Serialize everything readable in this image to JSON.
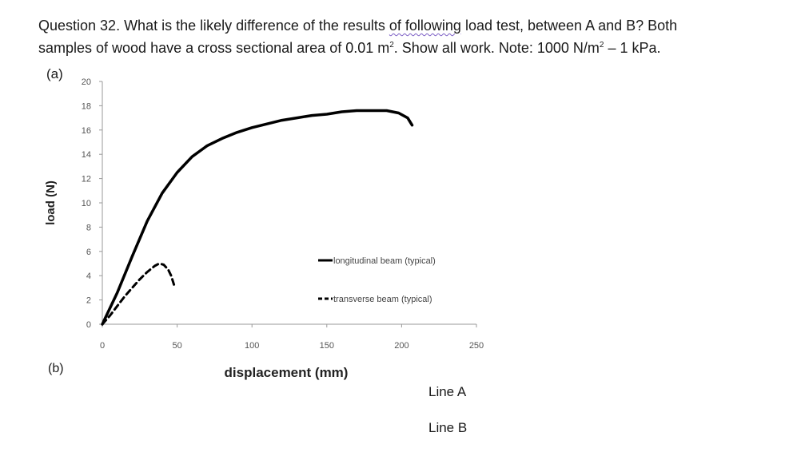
{
  "question": {
    "line1_before": "Question 32. What is the likely difference of the results ",
    "line1_wavy": "of following",
    "line1_after": " load test, between A and B? Both",
    "line2_a": "samples of wood have a cross sectional area of 0.01 m",
    "sup1": "2",
    "line2_b": ". Show all work. Note: 1000 N/m",
    "sup2": "2",
    "line2_c": " – 1 kPa."
  },
  "part_a_label": "(a)",
  "part_b_label": "(b)",
  "line_a_label": "Line A",
  "line_b_label": "Line B",
  "chart_data": {
    "type": "line",
    "xlabel": "displacement (mm)",
    "ylabel": "load (N)",
    "xlim": [
      0,
      250
    ],
    "ylim": [
      0,
      20
    ],
    "x_ticks": [
      "0",
      "50",
      "100",
      "150",
      "200",
      "250"
    ],
    "y_ticks": [
      "0",
      "2",
      "4",
      "6",
      "8",
      "10",
      "12",
      "14",
      "16",
      "18",
      "20"
    ],
    "grid": false,
    "legend_position": "right",
    "series": [
      {
        "name": "longitudinal beam (typical)",
        "style": "solid",
        "color": "#000000",
        "x": [
          0,
          10,
          20,
          30,
          40,
          50,
          60,
          70,
          80,
          90,
          100,
          110,
          120,
          130,
          140,
          150,
          160,
          170,
          180,
          190,
          198,
          204,
          207
        ],
        "y": [
          0,
          2.6,
          5.6,
          8.5,
          10.8,
          12.5,
          13.8,
          14.7,
          15.3,
          15.8,
          16.2,
          16.5,
          16.8,
          17.0,
          17.2,
          17.3,
          17.5,
          17.6,
          17.6,
          17.6,
          17.4,
          17.0,
          16.4
        ]
      },
      {
        "name": "transverse beam (typical)",
        "style": "dashed",
        "color": "#000000",
        "x": [
          0,
          5,
          10,
          15,
          20,
          25,
          30,
          35,
          38,
          41,
          44,
          46,
          48
        ],
        "y": [
          0,
          0.7,
          1.5,
          2.3,
          3.0,
          3.7,
          4.3,
          4.8,
          5.0,
          4.9,
          4.5,
          4.0,
          3.2
        ]
      }
    ]
  }
}
